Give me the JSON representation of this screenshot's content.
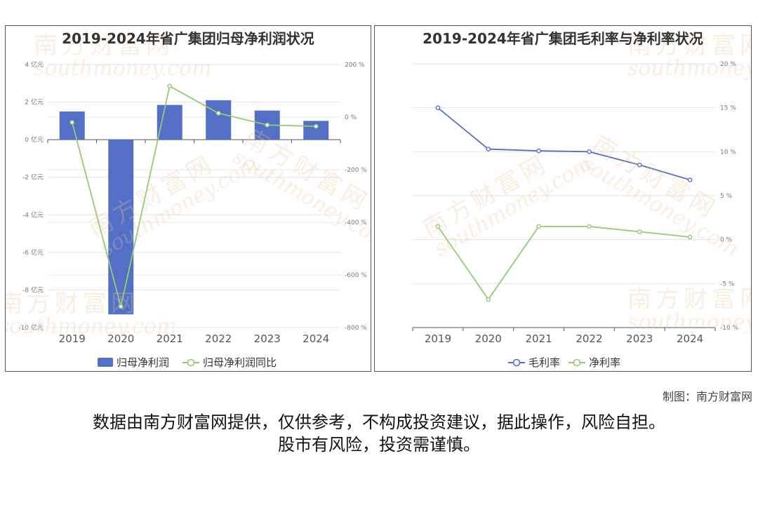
{
  "left_chart": {
    "title": "2019-2024年省广集团归母净利润状况",
    "legend": [
      {
        "label": "归母净利润",
        "color": "#5470c6",
        "kind": "bar"
      },
      {
        "label": "归母净利润同比",
        "color": "#91cc75",
        "kind": "line"
      }
    ],
    "y_left_ticks": [
      "4 亿元",
      "2 亿元",
      "0 亿元",
      "-2 亿元",
      "-4 亿元",
      "-6 亿元",
      "-8 亿元",
      "-10 亿元"
    ],
    "y_right_ticks": [
      "200 %",
      "0 %",
      "-200 %",
      "-400 %",
      "-600 %",
      "-800 %"
    ]
  },
  "right_chart": {
    "title": "2019-2024年省广集团毛利率与净利率状况",
    "legend": [
      {
        "label": "毛利率",
        "color": "#5470c6",
        "kind": "line"
      },
      {
        "label": "净利率",
        "color": "#91cc75",
        "kind": "line"
      }
    ],
    "y_right_ticks": [
      "20 %",
      "15 %",
      "10 %",
      "5 %",
      "0 %",
      "-5 %",
      "-10 %"
    ]
  },
  "chart_data": [
    {
      "type": "bar",
      "title": "2019-2024年省广集团归母净利润状况",
      "categories": [
        "2019",
        "2020",
        "2021",
        "2022",
        "2023",
        "2024"
      ],
      "series": [
        {
          "name": "归母净利润",
          "type": "bar",
          "axis": "left",
          "unit": "亿元",
          "color": "#5470c6",
          "values": [
            1.5,
            -9.3,
            1.85,
            2.1,
            1.55,
            1.0
          ]
        },
        {
          "name": "归母净利润同比",
          "type": "line",
          "axis": "right",
          "unit": "%",
          "color": "#91cc75",
          "values": [
            -20,
            -720,
            118,
            15,
            -30,
            -35
          ]
        }
      ],
      "ylim_left": [
        -10,
        4
      ],
      "ylim_right": [
        -800,
        200
      ],
      "grid": true,
      "legend_position": "bottom"
    },
    {
      "type": "line",
      "title": "2019-2024年省广集团毛利率与净利率状况",
      "categories": [
        "2019",
        "2020",
        "2021",
        "2022",
        "2023",
        "2024"
      ],
      "series": [
        {
          "name": "毛利率",
          "unit": "%",
          "color": "#5470c6",
          "values": [
            15.0,
            10.3,
            10.1,
            10.0,
            8.5,
            6.8
          ]
        },
        {
          "name": "净利率",
          "unit": "%",
          "color": "#91cc75",
          "values": [
            1.5,
            -6.8,
            1.5,
            1.5,
            0.9,
            0.3
          ]
        }
      ],
      "ylim": [
        -10,
        20
      ],
      "grid": true,
      "legend_position": "bottom"
    }
  ],
  "watermark": {
    "cn": "南方财富网",
    "en": "southmoney.com"
  },
  "credit": "制图：南方财富网",
  "disclaimer": {
    "line1": "数据由南方财富网提供，仅供参考，不构成投资建议，据此操作，风险自担。",
    "line2": "股市有风险，投资需谨慎。"
  }
}
